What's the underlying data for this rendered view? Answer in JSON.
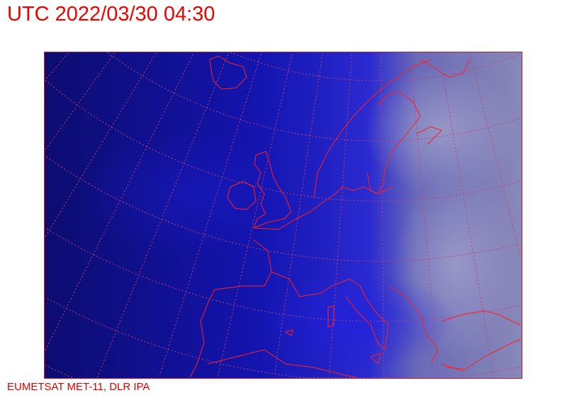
{
  "header": {
    "title": "UTC 2022/03/30 04:30"
  },
  "footer": {
    "credit": "EUMETSAT MET-11, DLR IPA"
  },
  "map": {
    "imagery": "satellite-composite",
    "colors": {
      "ocean": "#0a0a6e",
      "cloud": "#8a8ac8",
      "coastline": "#ff2020",
      "graticule": "#c04070"
    }
  }
}
